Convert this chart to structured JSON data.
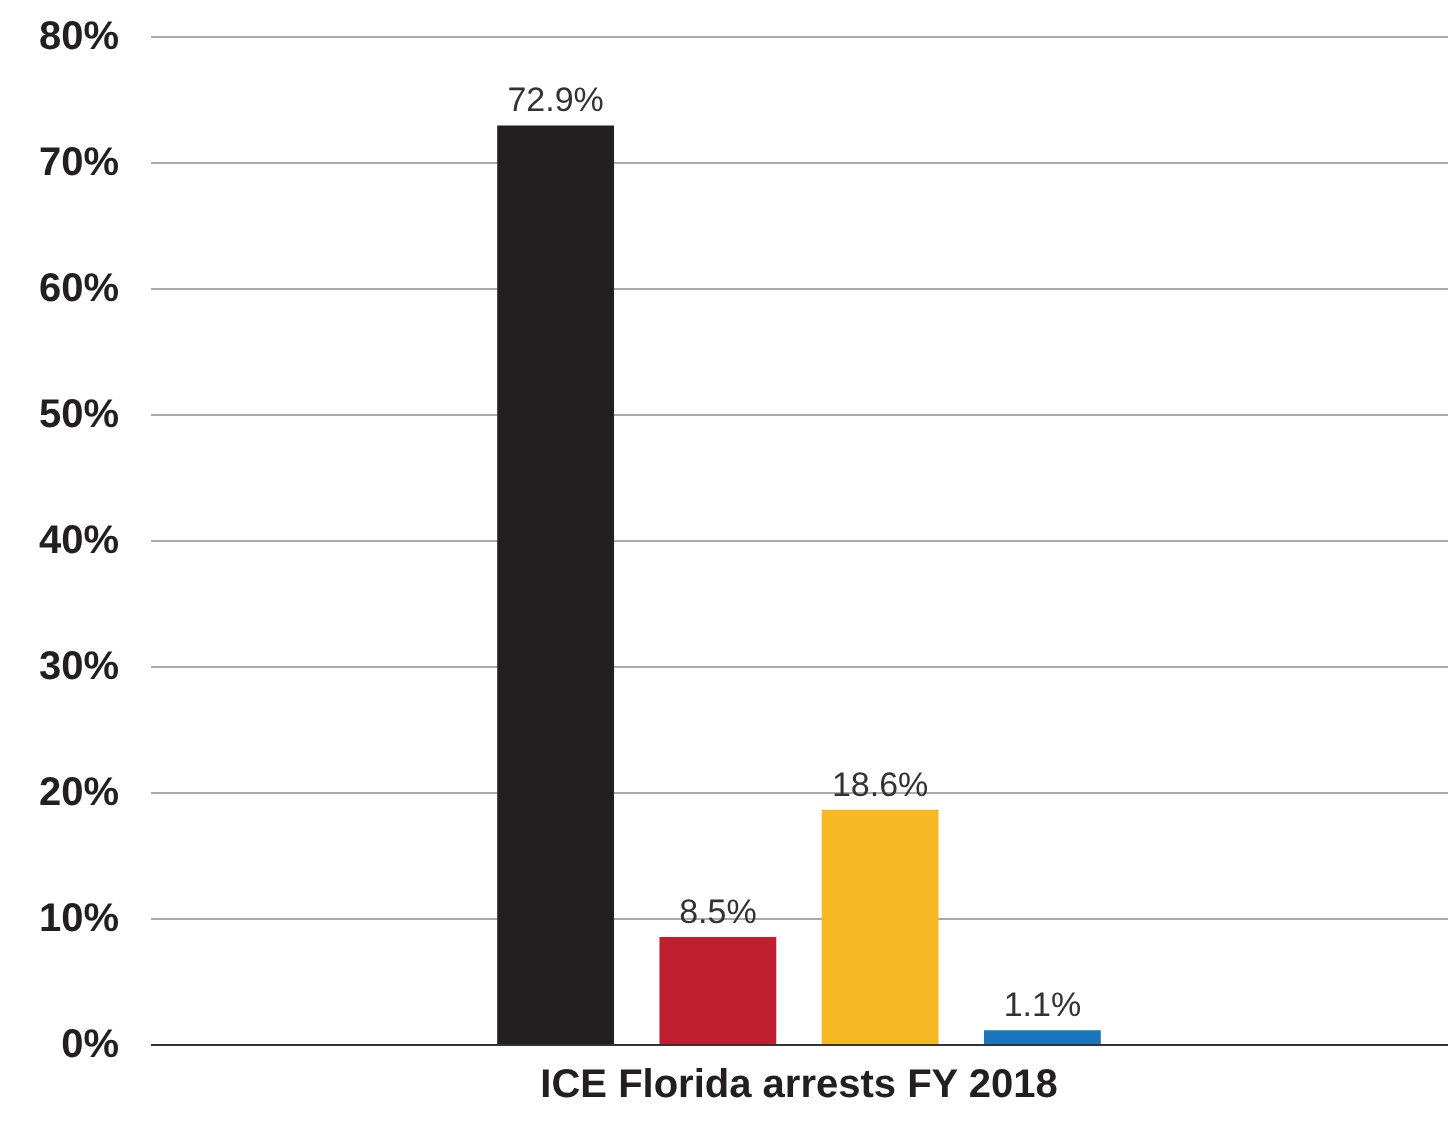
{
  "chart_data": {
    "type": "bar",
    "categories": [
      "ICE Florida arrests FY 2018"
    ],
    "series": [
      {
        "color": "#231f20",
        "values": [
          72.9
        ],
        "value_labels": [
          "72.9%"
        ]
      },
      {
        "color": "#be1e2d",
        "values": [
          8.5
        ],
        "value_labels": [
          "8.5%"
        ]
      },
      {
        "color": "#f7b923",
        "values": [
          18.6
        ],
        "value_labels": [
          "18.6%"
        ]
      },
      {
        "color": "#1b75bc",
        "values": [
          1.1
        ],
        "value_labels": [
          "1.1%"
        ]
      }
    ],
    "ylim": [
      0,
      80
    ],
    "yticks": [
      {
        "value": 0,
        "label": "0%"
      },
      {
        "value": 10,
        "label": "10%"
      },
      {
        "value": 20,
        "label": "20%"
      },
      {
        "value": 30,
        "label": "30%"
      },
      {
        "value": 40,
        "label": "40%"
      },
      {
        "value": 50,
        "label": "50%"
      },
      {
        "value": 60,
        "label": "60%"
      },
      {
        "value": 70,
        "label": "70%"
      },
      {
        "value": 80,
        "label": "80%"
      }
    ],
    "grid": "y"
  }
}
